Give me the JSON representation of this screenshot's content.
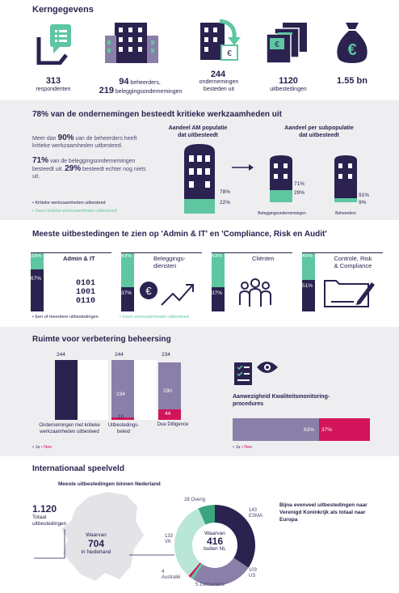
{
  "kerngegevens": {
    "title": "Kerngegevens",
    "stats": [
      {
        "value": "313",
        "label": "respondenten",
        "icon": "chat-device-icon"
      },
      {
        "value_prefix": "94",
        "label_line1": "beheerders,",
        "value2": "219",
        "label_line2": "beleggingsondernemingen",
        "icon": "buildings-icon"
      },
      {
        "value": "244",
        "label_line1": "ondernemingen",
        "label_line2": "besteden uit",
        "icon": "outsource-building-icon"
      },
      {
        "value": "1120",
        "label": "uitbestedingen",
        "icon": "documents-icon"
      },
      {
        "value": "1.55 bn",
        "label": "",
        "icon": "money-bag-icon"
      }
    ]
  },
  "kritiek": {
    "title": "78% van de ondernemingen besteedt kritieke werkzaamheden uit",
    "p1_pre": "Meer dan ",
    "p1_bold": "90%",
    "p1_post": " van de beheerders heeft kritieke werkzaamheden uitbesteed.",
    "p2_bold1": "71%",
    "p2_mid": " van de beleggingsondernemingen besteedt uit. ",
    "p2_bold2": "29%",
    "p2_post": " besteedt echter nog niets uit.",
    "legend_dark": "Kritieke werkzaamheden uitbesteed",
    "legend_green": "Geen kritieke werkzaamheden uitbesteed",
    "am_title_line1": "Aandeel AM populatie",
    "am_title_line2": "dat uitbesteedt",
    "am_yes": "78%",
    "am_no": "22%",
    "sub_title_line1": "Aandeel per subpopulatie",
    "sub_title_line2": "dat uitbesteedt",
    "sub": [
      {
        "label": "Beleggingsondernemingen",
        "yes": "71%",
        "no": "29%",
        "yes_val": 71
      },
      {
        "label": "Beheerders",
        "yes": "91%",
        "no": "9%",
        "yes_val": 91
      }
    ]
  },
  "meeste": {
    "title": "Meeste uitbestedingen te zien op 'Admin & IT' en 'Compliance, Risk en Audit'",
    "categories": [
      {
        "name": "Admin & IT",
        "green": "33%",
        "dark": "67%",
        "icon": "binary-icon",
        "binary": [
          "0101",
          "1001",
          "0110"
        ]
      },
      {
        "name_line1": "Beleggings-",
        "name_line2": "diensten",
        "green": "63%",
        "dark": "37%",
        "icon": "euro-growth-icon"
      },
      {
        "name": "Cliënten",
        "green": "63%",
        "dark": "37%",
        "icon": "people-icon"
      },
      {
        "name_line1": "Controle, Risk",
        "name_line2": "& Compliance",
        "green": "49%",
        "dark": "51%",
        "icon": "folder-pen-icon"
      }
    ],
    "legend_dark": "Een of meerdere uitbestedingen",
    "legend_green": "Geen werkzaamheden uitbesteed"
  },
  "ruimte": {
    "title": "Ruimte voor verbetering beheersing",
    "bars": [
      {
        "total": "244",
        "lower": "",
        "pink": "",
        "label_line1": "Ondernemingen met kritieke",
        "label_line2": "werkzaamheden uitbesteed"
      },
      {
        "total": "244",
        "lower": "234",
        "pink": "10",
        "label_line1": "Uitbestedings-",
        "label_line2": "beleid"
      },
      {
        "total": "234",
        "lower": "190",
        "pink": "44",
        "label_line1": "Due Dilligence",
        "label_line2": ""
      }
    ],
    "legend_ja": "Ja",
    "legend_nee": "Nee",
    "kwal_title_line1": "Aanwezigheid Kwaliteitsmonitoring-",
    "kwal_title_line2": "procedures",
    "kwal_ja": "63%",
    "kwal_nee": "37%",
    "kwal_ja_val": 63
  },
  "internationaal": {
    "title": "Internationaal speelveld",
    "subtitle": "Meeste uitbestedingen binnen Nederland",
    "total_value": "1.120",
    "total_label_line1": "Totaal",
    "total_label_line2": "uitbestedingen",
    "nl_prefix": "Waarvan",
    "nl_value": "704",
    "nl_suffix": "in Nederland",
    "donut_prefix": "Waarvan",
    "donut_value": "416",
    "donut_suffix": "buiten NL",
    "note": "Bijna evenveel uitbestedingen naar Verenigd Koninkrijk als totaal naar Europa",
    "donut": [
      {
        "name": "ESMA",
        "value": 143,
        "color": "#2b2250"
      },
      {
        "name": "US",
        "value": 103,
        "color": "#8a7fa8"
      },
      {
        "name": "Zwitserland",
        "value": 5,
        "color": "#5ec6a1"
      },
      {
        "name": "Australië",
        "value": 4,
        "color": "#d2145a"
      },
      {
        "name": "VK",
        "value": 133,
        "color": "#b9e6d6"
      },
      {
        "name": "Overig",
        "value": 28,
        "color": "#3aa57f"
      }
    ]
  },
  "colors": {
    "navy": "#2b2250",
    "green": "#5ec6a1",
    "pink": "#d2145a",
    "lavender": "#8a7fa8",
    "gray": "#eeeef0"
  }
}
